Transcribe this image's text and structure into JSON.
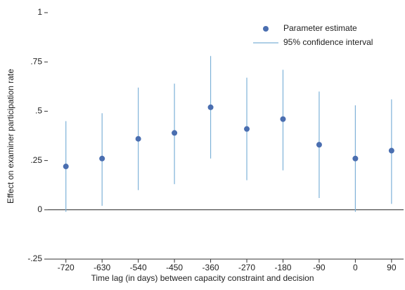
{
  "chart_data": {
    "type": "errorbar",
    "xlabel": "Time lag (in days) between capacity constraint and decision",
    "ylabel": "Effect on examiner participation rate",
    "x": [
      -720,
      -630,
      -540,
      -450,
      -360,
      -270,
      -180,
      -90,
      0,
      90
    ],
    "series": [
      {
        "name": "Parameter estimate",
        "color": "#4a6eb0",
        "values": [
          0.22,
          0.26,
          0.36,
          0.39,
          0.52,
          0.41,
          0.46,
          0.33,
          0.26,
          0.3
        ]
      },
      {
        "name": "95% confidence interval",
        "color": "#7eb2d8",
        "lower": [
          -0.01,
          0.02,
          0.1,
          0.13,
          0.26,
          0.15,
          0.2,
          0.06,
          -0.01,
          0.03
        ],
        "upper": [
          0.45,
          0.49,
          0.62,
          0.64,
          0.78,
          0.67,
          0.71,
          0.6,
          0.53,
          0.56
        ]
      }
    ],
    "xlim": [
      -765,
      120
    ],
    "xticks": [
      -720,
      -630,
      -540,
      -450,
      -360,
      -270,
      -180,
      -90,
      0,
      90
    ],
    "ylim": [
      -0.25,
      1
    ],
    "yticks": [
      {
        "value": -0.25,
        "label": "-.25"
      },
      0,
      {
        "value": 0.25,
        "label": ".25"
      },
      {
        "value": 0.5,
        "label": ".5"
      },
      {
        "value": 0.75,
        "label": ".75"
      },
      1
    ],
    "reference_line": 0,
    "legend": "upper right"
  }
}
